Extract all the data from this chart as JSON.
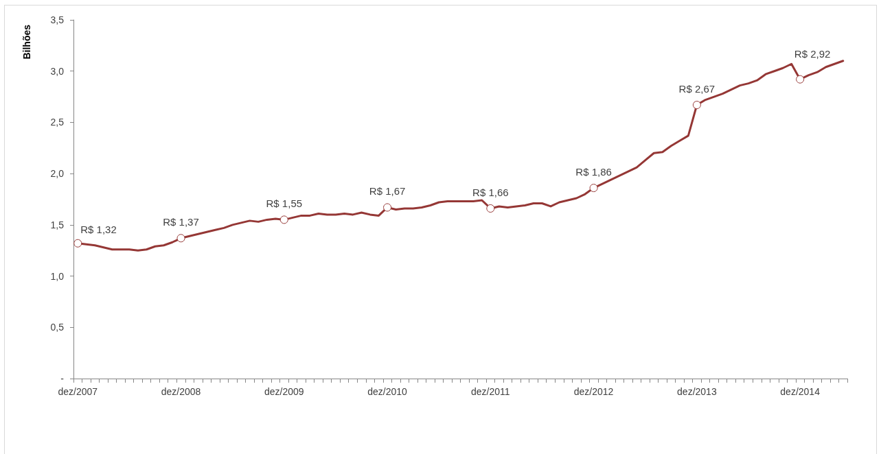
{
  "chart_data": {
    "type": "line",
    "ylabel": "Bilhões",
    "categories": [
      "dez/2007",
      null,
      null,
      null,
      null,
      null,
      null,
      null,
      null,
      null,
      null,
      null,
      "dez/2008",
      null,
      null,
      null,
      null,
      null,
      null,
      null,
      null,
      null,
      null,
      null,
      "dez/2009",
      null,
      null,
      null,
      null,
      null,
      null,
      null,
      null,
      null,
      null,
      null,
      "dez/2010",
      null,
      null,
      null,
      null,
      null,
      null,
      null,
      null,
      null,
      null,
      null,
      "dez/2011",
      null,
      null,
      null,
      null,
      null,
      null,
      null,
      null,
      null,
      null,
      null,
      "dez/2012",
      null,
      null,
      null,
      null,
      null,
      null,
      null,
      null,
      null,
      null,
      null,
      "dez/2013",
      null,
      null,
      null,
      null,
      null,
      null,
      null,
      null,
      null,
      null,
      null,
      "dez/2014",
      null,
      null,
      null,
      null,
      null
    ],
    "values": [
      1.32,
      1.31,
      1.3,
      1.28,
      1.26,
      1.26,
      1.26,
      1.25,
      1.26,
      1.29,
      1.3,
      1.33,
      1.37,
      1.39,
      1.41,
      1.43,
      1.45,
      1.47,
      1.5,
      1.52,
      1.54,
      1.53,
      1.55,
      1.56,
      1.55,
      1.57,
      1.59,
      1.59,
      1.61,
      1.6,
      1.6,
      1.61,
      1.6,
      1.62,
      1.6,
      1.59,
      1.67,
      1.65,
      1.66,
      1.66,
      1.67,
      1.69,
      1.72,
      1.73,
      1.73,
      1.73,
      1.73,
      1.74,
      1.66,
      1.68,
      1.67,
      1.68,
      1.69,
      1.71,
      1.71,
      1.68,
      1.72,
      1.74,
      1.76,
      1.8,
      1.86,
      1.9,
      1.94,
      1.98,
      2.02,
      2.06,
      2.13,
      2.2,
      2.21,
      2.27,
      2.32,
      2.37,
      2.67,
      2.72,
      2.75,
      2.78,
      2.82,
      2.86,
      2.88,
      2.91,
      2.97,
      3.0,
      3.03,
      3.07,
      2.92,
      2.96,
      2.99,
      3.04,
      3.07,
      3.1
    ],
    "value_labels": [
      "R$ 1,32",
      null,
      null,
      null,
      null,
      null,
      null,
      null,
      null,
      null,
      null,
      null,
      "R$ 1,37",
      null,
      null,
      null,
      null,
      null,
      null,
      null,
      null,
      null,
      null,
      null,
      "R$ 1,55",
      null,
      null,
      null,
      null,
      null,
      null,
      null,
      null,
      null,
      null,
      null,
      "R$ 1,67",
      null,
      null,
      null,
      null,
      null,
      null,
      null,
      null,
      null,
      null,
      null,
      "R$ 1,66",
      null,
      null,
      null,
      null,
      null,
      null,
      null,
      null,
      null,
      null,
      null,
      "R$ 1,86",
      null,
      null,
      null,
      null,
      null,
      null,
      null,
      null,
      null,
      null,
      null,
      "R$ 2,67",
      null,
      null,
      null,
      null,
      null,
      null,
      null,
      null,
      null,
      null,
      null,
      "R$ 2,92",
      null,
      null,
      null,
      null,
      null
    ],
    "color": "#953735",
    "line_style": "solid",
    "grid": false,
    "ylim": [
      0,
      3.5
    ],
    "yticks": [
      {
        "value": 0,
        "label": "-"
      },
      {
        "value": 0.5,
        "label": "0,5"
      },
      {
        "value": 1,
        "label": "1,0"
      },
      {
        "value": 1.5,
        "label": "1,5"
      },
      {
        "value": 2,
        "label": "2,0"
      },
      {
        "value": 2.5,
        "label": "2,5"
      },
      {
        "value": 3,
        "label": "3,0"
      },
      {
        "value": 3.5,
        "label": "3,5"
      }
    ]
  }
}
